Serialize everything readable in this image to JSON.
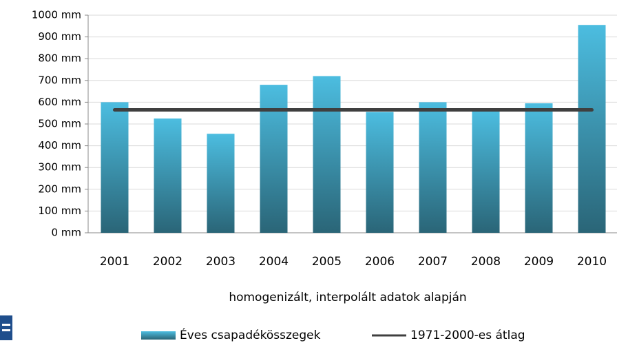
{
  "chart_data": {
    "type": "bar",
    "x_label": "homogenizált, interpolált adatok alapján",
    "categories": [
      "2001",
      "2002",
      "2003",
      "2004",
      "2005",
      "2006",
      "2007",
      "2008",
      "2009",
      "2010"
    ],
    "series": [
      {
        "name": "Éves csapadékösszegek",
        "type": "bar",
        "color": "#3aa6c6",
        "values": [
          600,
          525,
          455,
          680,
          720,
          555,
          600,
          560,
          595,
          955
        ]
      },
      {
        "name": "1971-2000-es átlag",
        "type": "line",
        "color": "#3f3f3f",
        "values": [
          565,
          565,
          565,
          565,
          565,
          565,
          565,
          565,
          565,
          565
        ]
      }
    ],
    "ylim": [
      0,
      1000
    ],
    "yticks": [
      {
        "value": 0,
        "label": "0 mm"
      },
      {
        "value": 100,
        "label": "100 mm"
      },
      {
        "value": 200,
        "label": "200 mm"
      },
      {
        "value": 300,
        "label": "300 mm"
      },
      {
        "value": 400,
        "label": "400 mm"
      },
      {
        "value": 500,
        "label": "500 mm"
      },
      {
        "value": 600,
        "label": "600 mm"
      },
      {
        "value": 700,
        "label": "700 mm"
      },
      {
        "value": 800,
        "label": "800 mm"
      },
      {
        "value": 900,
        "label": "900 mm"
      },
      {
        "value": 1000,
        "label": "1000 mm"
      }
    ],
    "grid": true
  }
}
